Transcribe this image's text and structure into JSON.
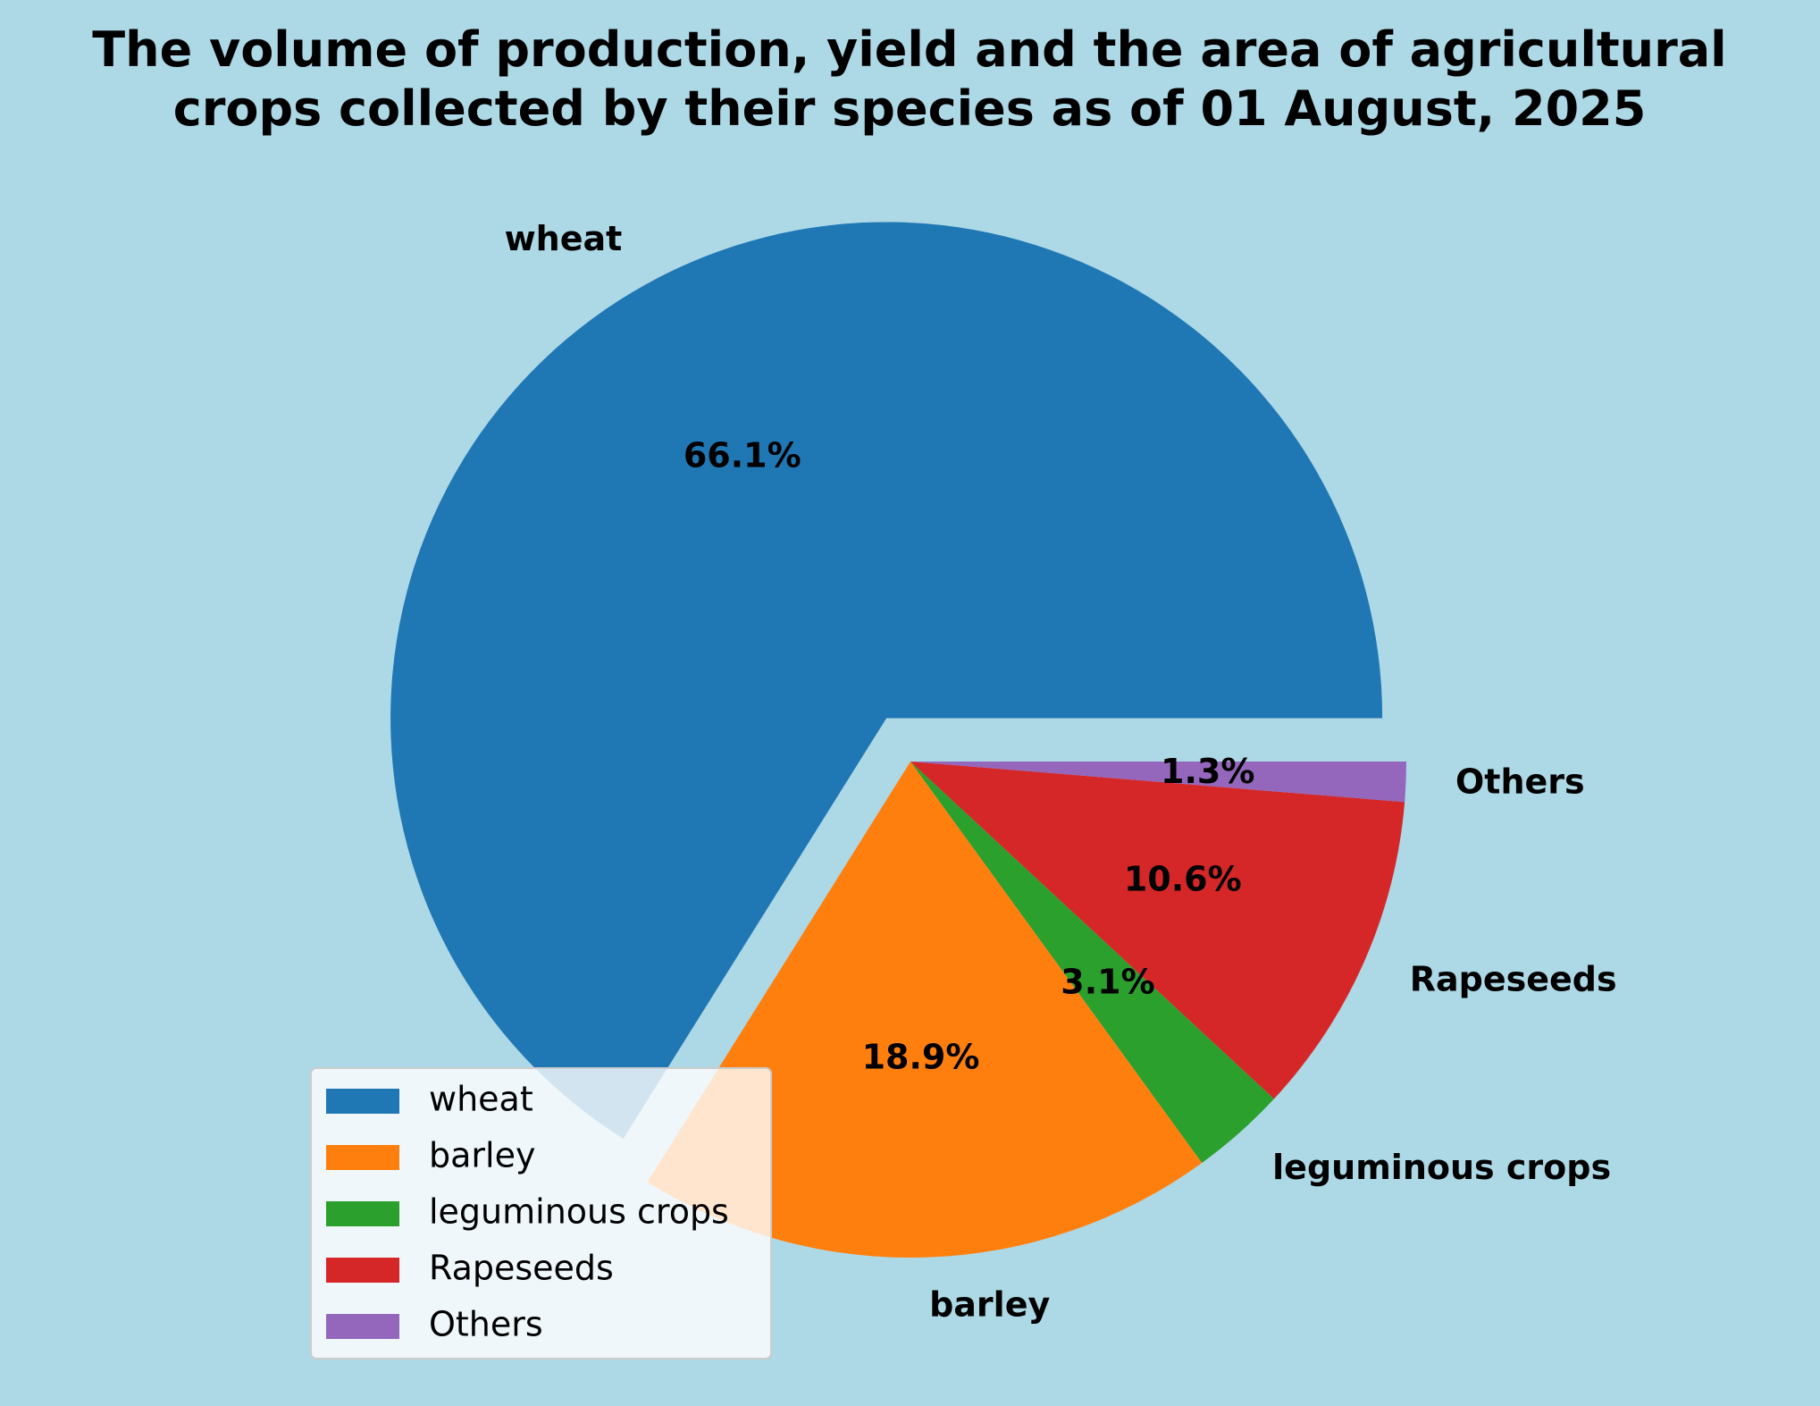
{
  "chart_data": {
    "type": "pie",
    "title": "The volume of production, yield and the area of agricultural crops collected by their species as of 01 August, 2025",
    "title_lines": [
      "The volume of production, yield and the area of agricultural",
      "crops collected by their species as of 01 August, 2025"
    ],
    "categories": [
      "wheat",
      "barley",
      "leguminous crops",
      "Rapeseeds",
      "Others"
    ],
    "values": [
      66.1,
      18.9,
      3.1,
      10.6,
      1.3
    ],
    "percent_labels": [
      "66.1%",
      "18.9%",
      "3.1%",
      "10.6%",
      "1.3%"
    ],
    "colors": [
      "#1f77b4",
      "#ff7f0e",
      "#2ca02c",
      "#d62728",
      "#9467bd"
    ],
    "exploded": [
      "wheat"
    ],
    "legend_placement": "lower-left",
    "background": "#add8e6"
  }
}
